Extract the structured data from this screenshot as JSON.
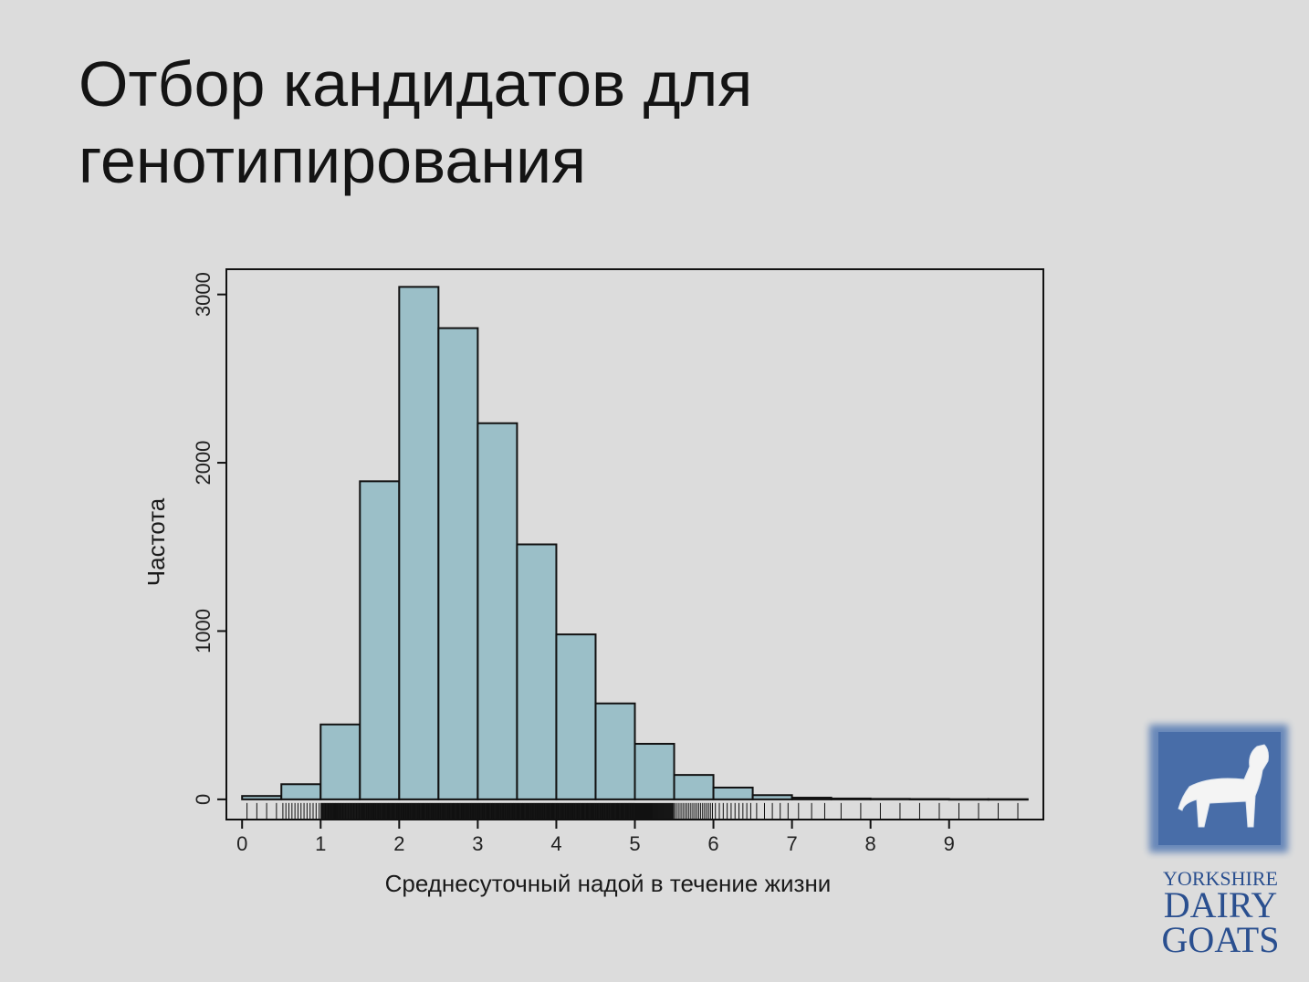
{
  "slide": {
    "title_line1": "Отбор кандидатов для",
    "title_line2": "генотипирования"
  },
  "logo": {
    "line1": "YORKSHIRE",
    "line2": "DAIRY",
    "line3": "GOATS",
    "icon": "goat-icon",
    "color": "#2a4f8f"
  },
  "chart_data": {
    "type": "bar",
    "subtype": "histogram",
    "title": "",
    "xlabel": "Среднесуточный надой в течение жизни",
    "ylabel": "Частота",
    "bin_edges": [
      0,
      0.5,
      1,
      1.5,
      2,
      2.5,
      3,
      3.5,
      4,
      4.5,
      5,
      5.5,
      6,
      6.5,
      7,
      7.5,
      8,
      8.5,
      9,
      9.5,
      10
    ],
    "values": [
      20,
      90,
      445,
      1890,
      3045,
      2800,
      2235,
      1515,
      980,
      570,
      330,
      145,
      70,
      25,
      10,
      5,
      3,
      2,
      1,
      1
    ],
    "x_ticks": [
      "0",
      "1",
      "2",
      "3",
      "4",
      "5",
      "6",
      "7",
      "8",
      "9"
    ],
    "y_ticks": [
      "0",
      "1000",
      "2000",
      "3000"
    ],
    "xlim": [
      -0.2,
      10.2
    ],
    "ylim": [
      -120,
      3150
    ],
    "bar_color": "#9bbfc8",
    "rug": true,
    "grid": false,
    "legend": "none"
  }
}
